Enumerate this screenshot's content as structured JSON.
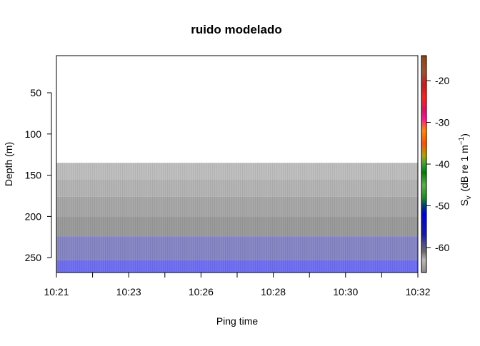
{
  "chart_data": {
    "type": "heatmap",
    "title": "ruido modelado",
    "xlabel": "Ping time",
    "ylabel": "Depth (m)",
    "x_ticks": [
      "10:21",
      "10:23",
      "10:26",
      "10:28",
      "10:30",
      "10:32"
    ],
    "x_range_minutes": [
      0,
      11
    ],
    "y_range": [
      5,
      268
    ],
    "y_ticks": [
      50,
      100,
      150,
      200,
      250
    ],
    "y_inverted": true,
    "noise_bands": [
      {
        "depth_from": 135,
        "depth_to": 155,
        "color": "#bdbdbd"
      },
      {
        "depth_from": 155,
        "depth_to": 176,
        "color": "#b3b3b3"
      },
      {
        "depth_from": 176,
        "depth_to": 200,
        "color": "#a6a6a6"
      },
      {
        "depth_from": 200,
        "depth_to": 224,
        "color": "#9a9a9a"
      },
      {
        "depth_from": 224,
        "depth_to": 253,
        "color": "#8585c5"
      },
      {
        "depth_from": 253,
        "depth_to": 268,
        "color": "#6e6ef0"
      }
    ],
    "colorbar": {
      "label": "S",
      "label_subscript": "v",
      "label_units_pre": "(dB re 1 m",
      "label_units_sup": "−1",
      "label_units_post": ")",
      "range": [
        -66,
        -14
      ],
      "ticks": [
        -20,
        -30,
        -40,
        -50,
        -60
      ],
      "tick_labels": [
        "-20",
        "-30",
        "-40",
        "-50",
        "-60"
      ],
      "stops": [
        {
          "value": -66,
          "color": "#8a8a8a"
        },
        {
          "value": -63,
          "color": "#b8b8b8"
        },
        {
          "value": -61,
          "color": "#6a6a6a"
        },
        {
          "value": -59,
          "color": "#4a4a8a"
        },
        {
          "value": -57,
          "color": "#1a1aa8"
        },
        {
          "value": -52,
          "color": "#0000e0"
        },
        {
          "value": -50,
          "color": "#003c7a"
        },
        {
          "value": -48,
          "color": "#1e8f1e"
        },
        {
          "value": -45,
          "color": "#5ab04a"
        },
        {
          "value": -42,
          "color": "#007a00"
        },
        {
          "value": -40,
          "color": "#3aa03a"
        },
        {
          "value": -38,
          "color": "#a8a800"
        },
        {
          "value": -35,
          "color": "#ff5000"
        },
        {
          "value": -32,
          "color": "#ff8c00"
        },
        {
          "value": -29,
          "color": "#ff1090"
        },
        {
          "value": -27,
          "color": "#e01060"
        },
        {
          "value": -24,
          "color": "#ff2020"
        },
        {
          "value": -21,
          "color": "#cc1a1a"
        },
        {
          "value": -18,
          "color": "#a0522d"
        },
        {
          "value": -14,
          "color": "#8b4513"
        }
      ]
    }
  }
}
